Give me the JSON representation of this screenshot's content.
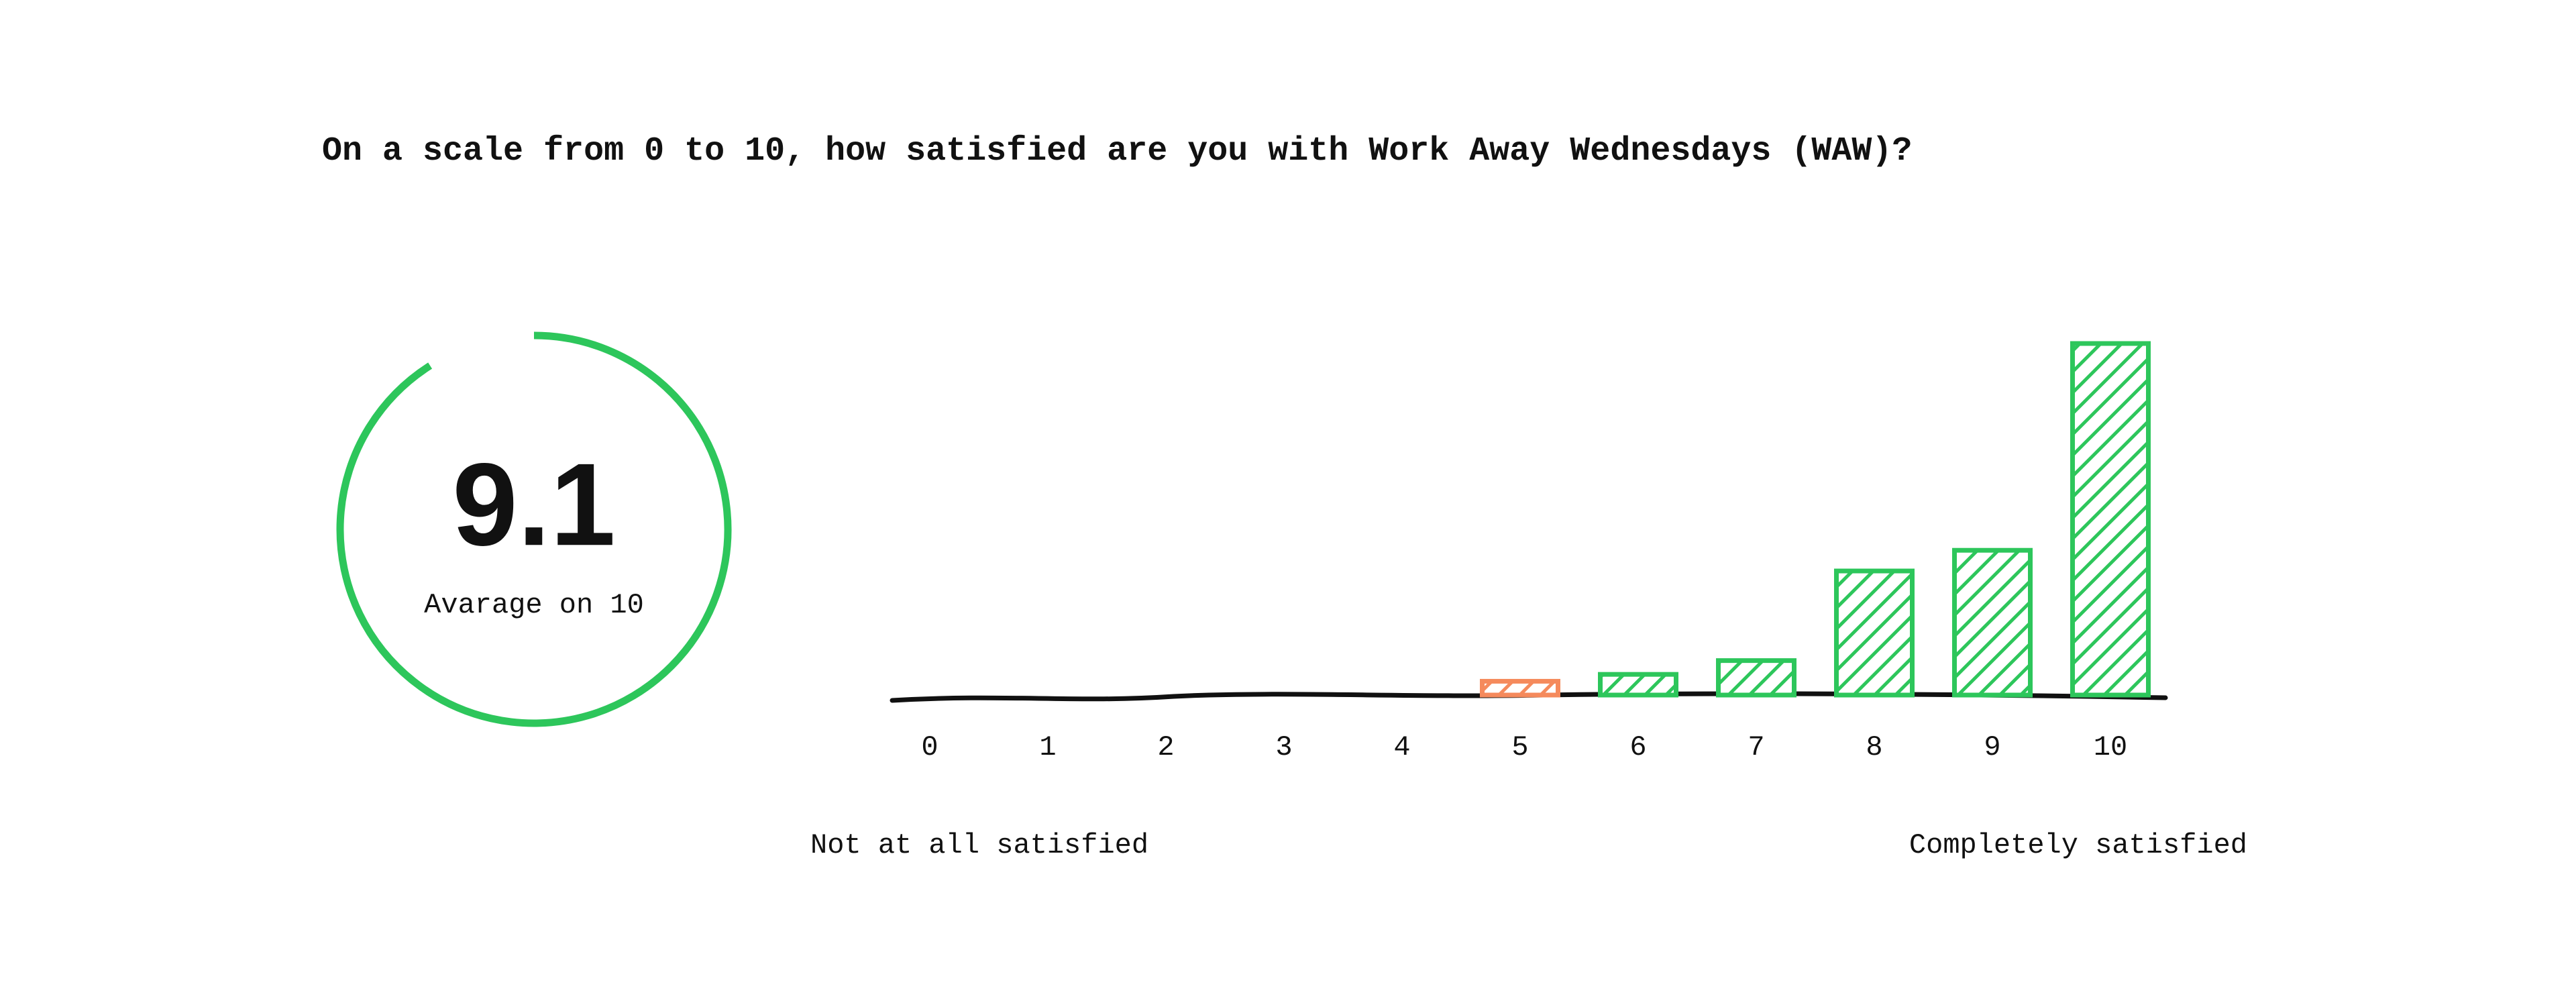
{
  "chart_data": {
    "type": "bar",
    "title": "On a scale from 0 to 10, how satisfied are you with Work Away Wednesdays (WAW)?",
    "gauge": {
      "value": 9.1,
      "label": "Avarage on 10",
      "color": "#2dc65b"
    },
    "categories": [
      "0",
      "1",
      "2",
      "3",
      "4",
      "5",
      "6",
      "7",
      "8",
      "9",
      "10"
    ],
    "values": [
      0,
      0,
      0,
      0,
      0,
      2,
      3,
      5,
      18,
      21,
      51
    ],
    "colors": [
      "#2dc65b",
      "#2dc65b",
      "#2dc65b",
      "#2dc65b",
      "#2dc65b",
      "#f58a5c",
      "#2dc65b",
      "#2dc65b",
      "#2dc65b",
      "#2dc65b",
      "#2dc65b"
    ],
    "low_label": "Not at all satisfied",
    "high_label": "Completely satisfied"
  }
}
